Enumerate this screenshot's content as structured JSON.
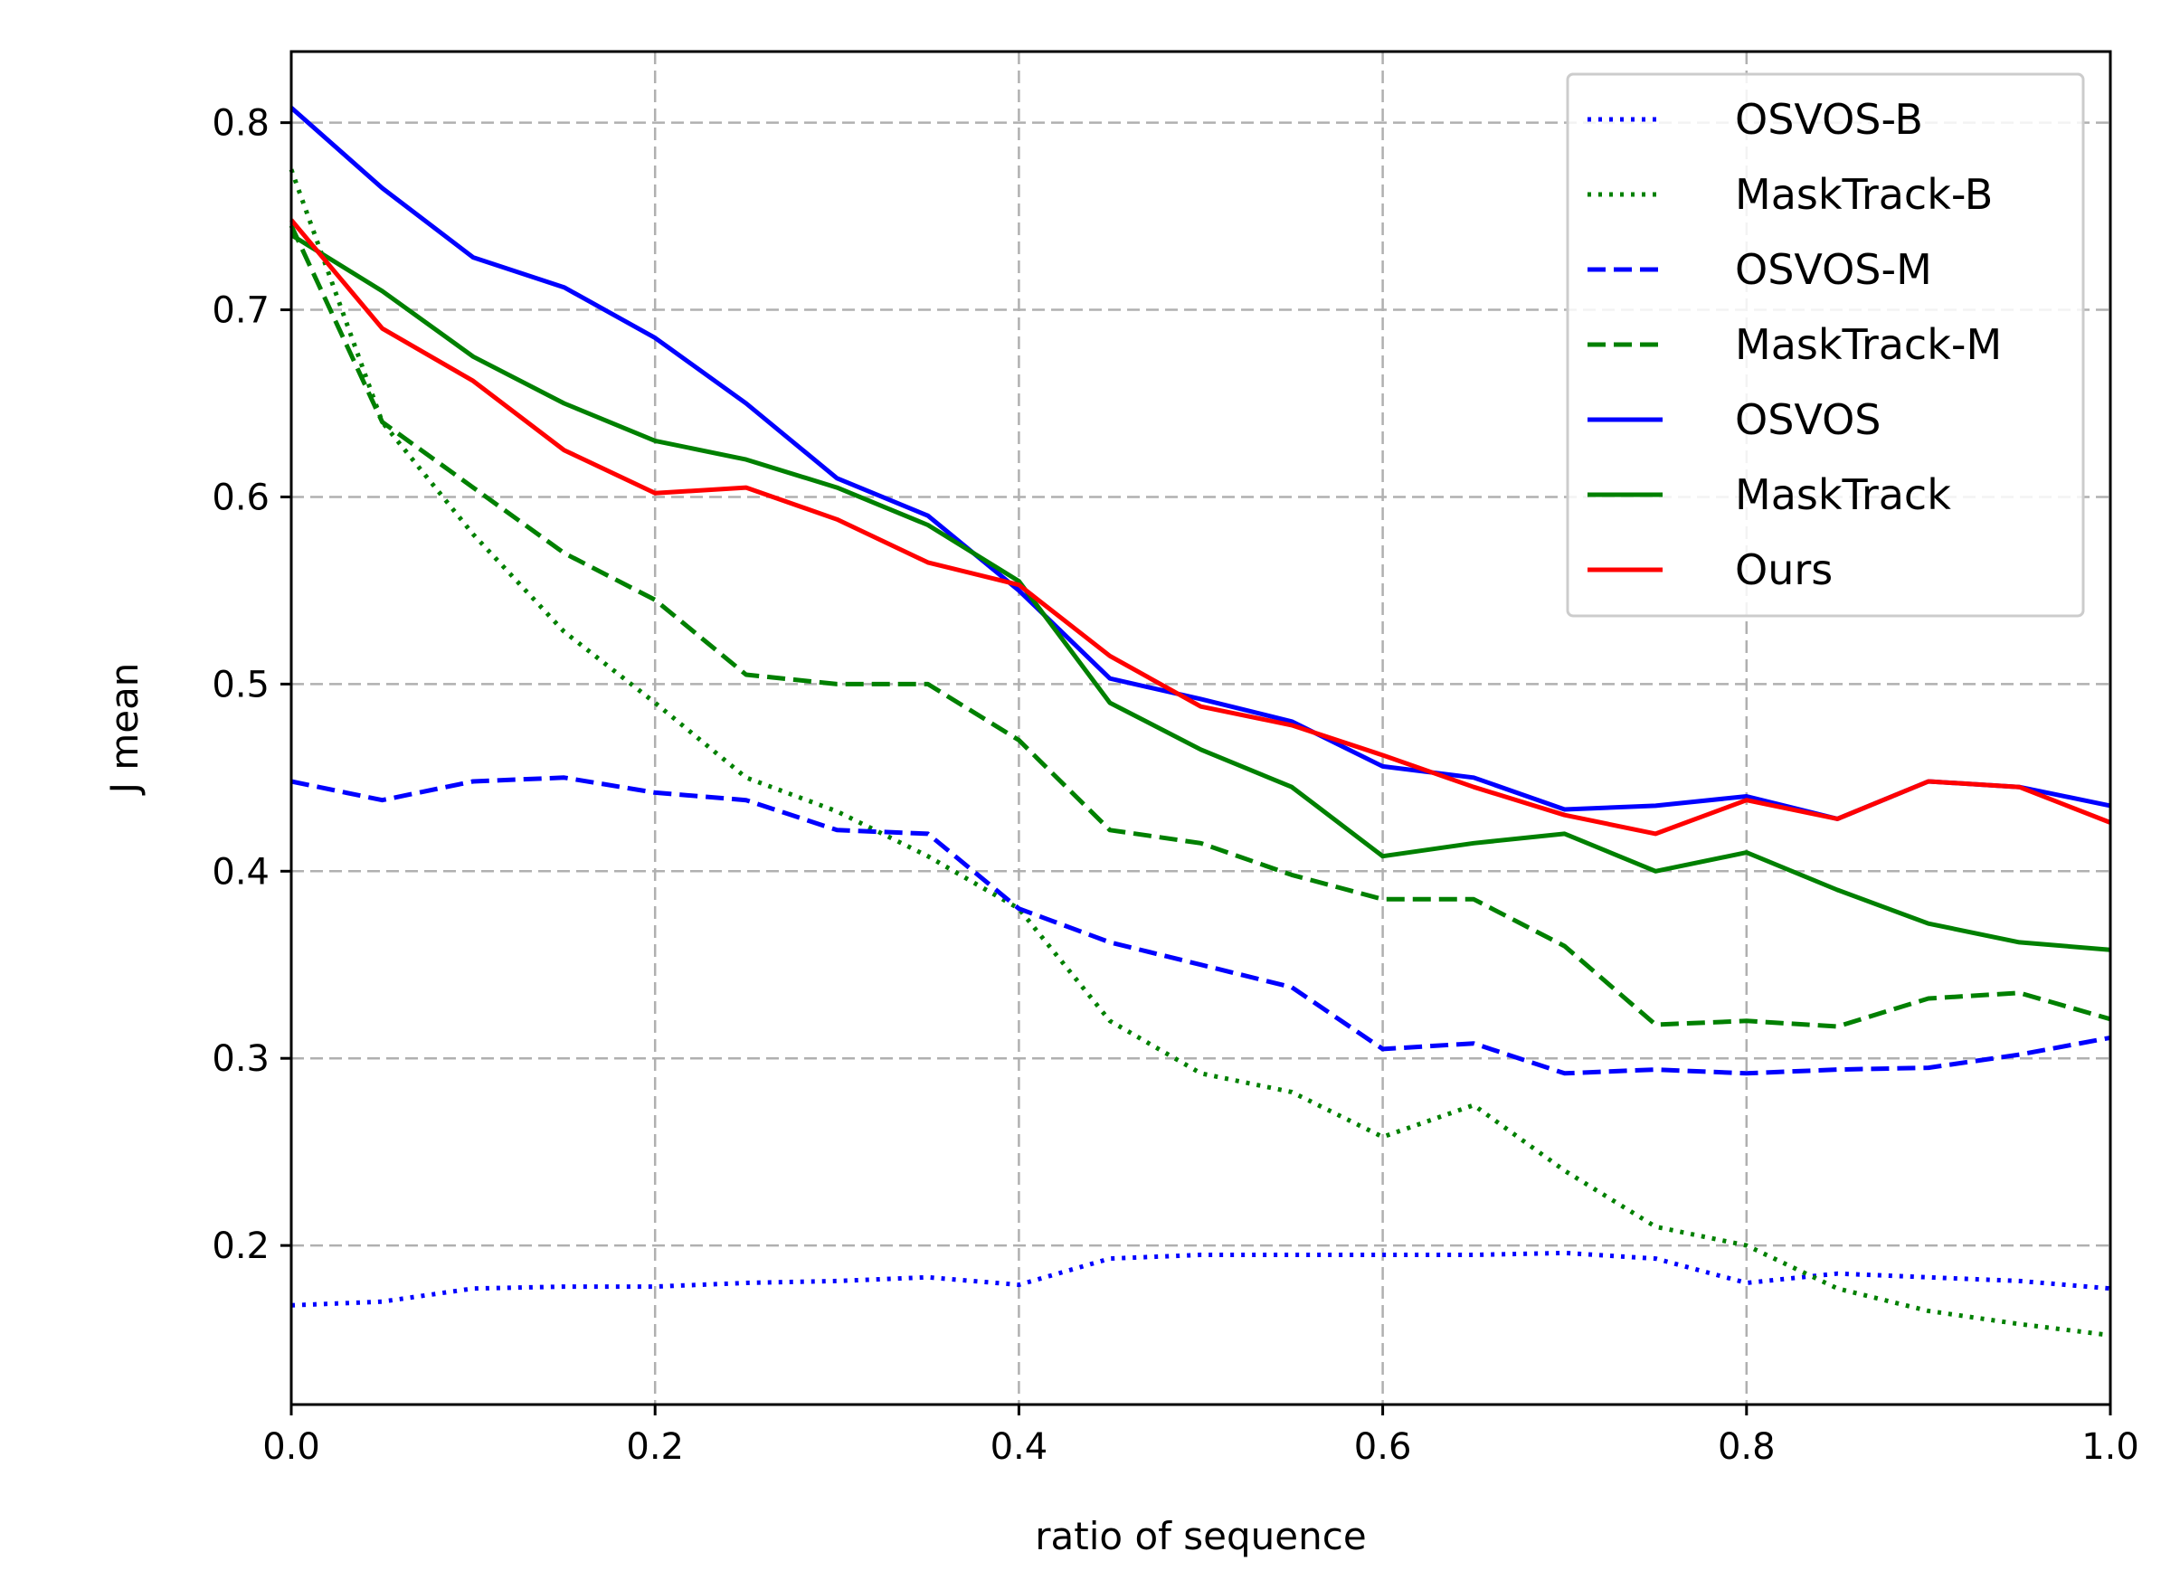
{
  "chart_data": {
    "type": "line",
    "title": "",
    "xlabel": "ratio of sequence",
    "ylabel": "J mean",
    "xlim": [
      0.0,
      1.0
    ],
    "ylim": [
      0.115,
      0.838
    ],
    "xticks": [
      0.0,
      0.2,
      0.4,
      0.6,
      0.8,
      1.0
    ],
    "xtick_labels": [
      "0.0",
      "0.2",
      "0.4",
      "0.6",
      "0.8",
      "1.0"
    ],
    "yticks": [
      0.2,
      0.3,
      0.4,
      0.5,
      0.6,
      0.7,
      0.8
    ],
    "ytick_labels": [
      "0.2",
      "0.3",
      "0.4",
      "0.5",
      "0.6",
      "0.7",
      "0.8"
    ],
    "grid": true,
    "legend_position": "top-right",
    "x": [
      0.0,
      0.05,
      0.1,
      0.15,
      0.2,
      0.25,
      0.3,
      0.35,
      0.4,
      0.45,
      0.5,
      0.55,
      0.6,
      0.65,
      0.7,
      0.75,
      0.8,
      0.85,
      0.9,
      0.95,
      1.0
    ],
    "series": [
      {
        "name": "OSVOS-B",
        "color": "#0000ff",
        "style": "dotted",
        "values": [
          0.168,
          0.17,
          0.177,
          0.178,
          0.178,
          0.18,
          0.181,
          0.183,
          0.179,
          0.193,
          0.195,
          0.195,
          0.195,
          0.195,
          0.196,
          0.193,
          0.18,
          0.185,
          0.183,
          0.181,
          0.177
        ]
      },
      {
        "name": "MaskTrack-B",
        "color": "#008000",
        "style": "dotted",
        "values": [
          0.775,
          0.64,
          0.58,
          0.528,
          0.49,
          0.45,
          0.432,
          0.408,
          0.38,
          0.32,
          0.292,
          0.282,
          0.258,
          0.275,
          0.24,
          0.21,
          0.2,
          0.177,
          0.165,
          0.158,
          0.152
        ]
      },
      {
        "name": "OSVOS-M",
        "color": "#0000ff",
        "style": "dashed",
        "values": [
          0.448,
          0.438,
          0.448,
          0.45,
          0.442,
          0.438,
          0.422,
          0.42,
          0.38,
          0.362,
          0.35,
          0.338,
          0.305,
          0.308,
          0.292,
          0.294,
          0.292,
          0.294,
          0.295,
          0.302,
          0.311
        ]
      },
      {
        "name": "MaskTrack-M",
        "color": "#008000",
        "style": "dashed",
        "values": [
          0.745,
          0.64,
          0.605,
          0.57,
          0.545,
          0.505,
          0.5,
          0.5,
          0.47,
          0.422,
          0.415,
          0.398,
          0.385,
          0.385,
          0.36,
          0.318,
          0.32,
          0.317,
          0.332,
          0.335,
          0.321
        ]
      },
      {
        "name": "OSVOS",
        "color": "#0000ff",
        "style": "solid",
        "values": [
          0.808,
          0.765,
          0.728,
          0.712,
          0.685,
          0.65,
          0.61,
          0.59,
          0.55,
          0.503,
          0.492,
          0.48,
          0.456,
          0.45,
          0.433,
          0.435,
          0.44,
          0.428,
          0.448,
          0.445,
          0.435
        ]
      },
      {
        "name": "MaskTrack",
        "color": "#008000",
        "style": "solid",
        "values": [
          0.74,
          0.71,
          0.675,
          0.65,
          0.63,
          0.62,
          0.605,
          0.585,
          0.555,
          0.49,
          0.465,
          0.445,
          0.408,
          0.415,
          0.42,
          0.4,
          0.41,
          0.39,
          0.372,
          0.362,
          0.358
        ]
      },
      {
        "name": "Ours",
        "color": "#ff0000",
        "style": "solid",
        "values": [
          0.748,
          0.69,
          0.662,
          0.625,
          0.602,
          0.605,
          0.588,
          0.565,
          0.553,
          0.515,
          0.488,
          0.478,
          0.462,
          0.445,
          0.43,
          0.42,
          0.438,
          0.428,
          0.448,
          0.445,
          0.426
        ]
      }
    ]
  }
}
